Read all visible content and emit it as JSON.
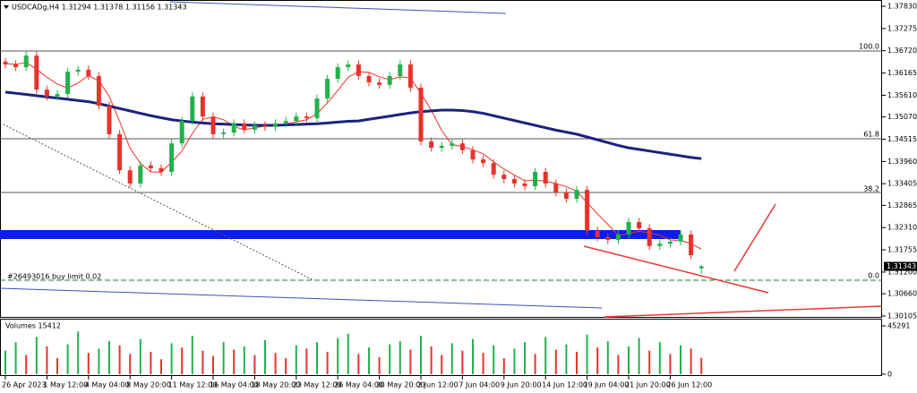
{
  "chart_data": {
    "type": "candlestick",
    "header": "USDCADg,H4  1.31294 1.31378 1.31156 1.31343",
    "categories": [
      "26 Apr 2023",
      null,
      null,
      null,
      "1 May 12:00",
      null,
      null,
      null,
      "4 May 04:00",
      null,
      null,
      null,
      "8 May 20:00",
      null,
      null,
      null,
      "11 May 12:00",
      null,
      null,
      null,
      "16 May 04:00",
      null,
      null,
      null,
      "18 May 20:00",
      null,
      null,
      null,
      "23 May 12:00",
      null,
      null,
      null,
      "26 May 04:00",
      null,
      null,
      null,
      "30 May 20:00",
      null,
      null,
      null,
      "2 Jun 12:00",
      null,
      null,
      null,
      "7 Jun 04:00",
      null,
      null,
      null,
      "9 Jun 20:00",
      null,
      null,
      null,
      "14 Jun 12:00",
      null,
      null,
      null,
      "19 Jun 04:00",
      null,
      null,
      null,
      "21 Jun 20:00",
      null,
      null,
      null,
      "26 Jun 12:00",
      null,
      null,
      null
    ],
    "open": [
      1.3645,
      1.3638,
      1.3631,
      1.366,
      1.3575,
      1.3558,
      1.3564,
      1.362,
      1.3625,
      1.3609,
      1.3535,
      1.3464,
      1.3374,
      1.3341,
      1.3386,
      1.3379,
      1.337,
      1.3441,
      1.3497,
      1.3558,
      1.3508,
      1.3464,
      1.3468,
      1.3491,
      1.3475,
      1.3486,
      1.3482,
      1.3491,
      1.3497,
      1.3508,
      1.3504,
      1.3553,
      1.3602,
      1.3631,
      1.3638,
      1.3609,
      1.3593,
      1.3587,
      1.3609,
      1.3638,
      1.358,
      1.3446,
      1.343,
      1.3435,
      1.3441,
      1.3424,
      1.3401,
      1.3392,
      1.3363,
      1.3352,
      1.3341,
      1.3334,
      1.337,
      1.3341,
      1.3319,
      1.3303,
      1.3325,
      1.3223,
      1.3207,
      1.32,
      1.3214,
      1.3245,
      1.3229,
      1.3185,
      1.3191,
      1.3196,
      1.3214,
      1.31294
    ],
    "high": [
      1.3655,
      1.3648,
      1.367,
      1.367,
      1.3585,
      1.3574,
      1.363,
      1.3635,
      1.3635,
      1.3619,
      1.3545,
      1.3474,
      1.3384,
      1.3396,
      1.3396,
      1.3389,
      1.3451,
      1.3507,
      1.3568,
      1.3568,
      1.3518,
      1.3478,
      1.3501,
      1.3501,
      1.3496,
      1.3496,
      1.3501,
      1.3507,
      1.3518,
      1.3518,
      1.3563,
      1.3612,
      1.3641,
      1.3648,
      1.3648,
      1.3619,
      1.3603,
      1.3619,
      1.3648,
      1.3648,
      1.359,
      1.3456,
      1.3445,
      1.3451,
      1.3451,
      1.3434,
      1.3411,
      1.3402,
      1.3373,
      1.3362,
      1.3351,
      1.338,
      1.338,
      1.3351,
      1.3329,
      1.3335,
      1.3335,
      1.3233,
      1.3217,
      1.3224,
      1.3255,
      1.3255,
      1.3239,
      1.3201,
      1.3206,
      1.3224,
      1.3224,
      1.31378
    ],
    "low": [
      1.3628,
      1.3621,
      1.3621,
      1.3565,
      1.3548,
      1.3548,
      1.3554,
      1.361,
      1.3599,
      1.3525,
      1.3454,
      1.3364,
      1.3331,
      1.3331,
      1.3369,
      1.336,
      1.336,
      1.3431,
      1.3487,
      1.3498,
      1.3454,
      1.3454,
      1.3458,
      1.3465,
      1.3465,
      1.3472,
      1.3472,
      1.3481,
      1.3487,
      1.3494,
      1.3494,
      1.3543,
      1.3592,
      1.3621,
      1.3599,
      1.3583,
      1.3577,
      1.3577,
      1.3599,
      1.357,
      1.3436,
      1.342,
      1.342,
      1.3425,
      1.3414,
      1.3391,
      1.3382,
      1.3353,
      1.3342,
      1.3331,
      1.3324,
      1.3324,
      1.3331,
      1.3309,
      1.3293,
      1.3293,
      1.3213,
      1.3197,
      1.319,
      1.319,
      1.3204,
      1.3219,
      1.3175,
      1.3175,
      1.3181,
      1.3186,
      1.3152,
      1.31156
    ],
    "close": [
      1.3638,
      1.3631,
      1.366,
      1.3575,
      1.3558,
      1.3564,
      1.362,
      1.3625,
      1.3609,
      1.3535,
      1.3464,
      1.3374,
      1.3341,
      1.3386,
      1.3379,
      1.337,
      1.3441,
      1.3497,
      1.3558,
      1.3508,
      1.3464,
      1.3468,
      1.3491,
      1.3475,
      1.3486,
      1.3482,
      1.3491,
      1.3497,
      1.3508,
      1.3504,
      1.3553,
      1.3602,
      1.3631,
      1.3638,
      1.3609,
      1.3593,
      1.3587,
      1.3609,
      1.3638,
      1.358,
      1.3446,
      1.343,
      1.3435,
      1.3441,
      1.3424,
      1.3401,
      1.3392,
      1.3363,
      1.3352,
      1.3341,
      1.3334,
      1.337,
      1.3341,
      1.3319,
      1.3303,
      1.3325,
      1.3223,
      1.3207,
      1.32,
      1.3214,
      1.3245,
      1.3229,
      1.3185,
      1.3191,
      1.3196,
      1.3214,
      1.3162,
      1.31343
    ],
    "up_color": "#22b14c",
    "down_color": "#e8332a",
    "ylim": [
      1.3006,
      1.37986
    ],
    "yticks": [
      {
        "value": 1.3783,
        "label": "1.37830"
      },
      {
        "value": 1.37275,
        "label": "1.37275"
      },
      {
        "value": 1.3672,
        "label": "1.36720"
      },
      {
        "value": 1.36165,
        "label": "1.36165"
      },
      {
        "value": 1.3561,
        "label": "1.35610"
      },
      {
        "value": 1.3507,
        "label": "1.35070"
      },
      {
        "value": 1.34515,
        "label": "1.34515"
      },
      {
        "value": 1.3396,
        "label": "1.33960"
      },
      {
        "value": 1.33405,
        "label": "1.33405"
      },
      {
        "value": 1.32865,
        "label": "1.32865"
      },
      {
        "value": 1.3231,
        "label": "1.32310"
      },
      {
        "value": 1.31755,
        "label": "1.31755"
      },
      {
        "value": 1.312,
        "label": "1.31200"
      },
      {
        "value": 1.3066,
        "label": "1.30660"
      },
      {
        "value": 1.30105,
        "label": "1.30105"
      }
    ],
    "last_price": 1.31343,
    "moving_averages": [
      {
        "color": "#e8332a",
        "values": [
          1.364,
          1.3638,
          1.3643,
          1.3626,
          1.3606,
          1.3589,
          1.3579,
          1.3592,
          1.361,
          1.3597,
          1.3558,
          1.3496,
          1.3429,
          1.3391,
          1.337,
          1.3369,
          1.3394,
          1.3422,
          1.3466,
          1.3501,
          1.3507,
          1.35,
          1.3483,
          1.3475,
          1.348,
          1.3484,
          1.3484,
          1.3489,
          1.3495,
          1.35,
          1.3515,
          1.3542,
          1.3573,
          1.3606,
          1.362,
          1.3618,
          1.3607,
          1.36,
          1.3607,
          1.3604,
          1.3566,
          1.3524,
          1.3473,
          1.3438,
          1.3433,
          1.3425,
          1.3415,
          1.3395,
          1.3377,
          1.3362,
          1.3348,
          1.3349,
          1.3347,
          1.3341,
          1.3333,
          1.3322,
          1.3293,
          1.3265,
          1.3239,
          1.3211,
          1.3216,
          1.3222,
          1.3218,
          1.3212,
          1.32,
          1.3199,
          1.3191,
          1.3177
        ]
      },
      {
        "color": "#1a237e",
        "values": [
          1.3569,
          1.3566,
          1.3563,
          1.356,
          1.3557,
          1.3554,
          1.3551,
          1.3548,
          1.3545,
          1.354,
          1.3534,
          1.3528,
          1.3522,
          1.3516,
          1.351,
          1.3505,
          1.35,
          1.3497,
          1.3494,
          1.3492,
          1.349,
          1.3489,
          1.3488,
          1.3487,
          1.3486,
          1.3486,
          1.3486,
          1.3487,
          1.3488,
          1.3489,
          1.349,
          1.3492,
          1.3494,
          1.3496,
          1.3497,
          1.3501,
          1.3505,
          1.3509,
          1.3513,
          1.3517,
          1.352,
          1.3522,
          1.3524,
          1.3524,
          1.3523,
          1.352,
          1.3516,
          1.351,
          1.3504,
          1.3498,
          1.3492,
          1.3486,
          1.348,
          1.3474,
          1.3469,
          1.3464,
          1.3457,
          1.345,
          1.3443,
          1.3436,
          1.343,
          1.3426,
          1.3422,
          1.3418,
          1.3414,
          1.341,
          1.3406,
          1.3403
        ]
      }
    ],
    "fib_labels": [
      "100.0",
      "61.8",
      "38.2",
      "0.0"
    ],
    "order_label": "#26493016 buy limit 0.02",
    "volume": {
      "label": "Volumes 15412",
      "ylim": [
        0,
        45291
      ],
      "yticks": [
        45291,
        0
      ],
      "values": [
        22000,
        30000,
        18000,
        35000,
        26000,
        15000,
        28000,
        40000,
        20000,
        24000,
        31000,
        27000,
        19000,
        33000,
        21000,
        14000,
        29000,
        25000,
        36000,
        22000,
        17000,
        30000,
        23000,
        26000,
        18000,
        32000,
        20000,
        15000,
        27000,
        24000,
        30000,
        21000,
        34000,
        38000,
        19000,
        25000,
        16000,
        28000,
        31000,
        23000,
        36000,
        26000,
        18000,
        29000,
        22000,
        33000,
        20000,
        27000,
        15000,
        24000,
        30000,
        19000,
        35000,
        23000,
        28000,
        21000,
        37000,
        25000,
        31000,
        18000,
        26000,
        34000,
        22000,
        30000,
        19000,
        27000,
        24000,
        15412
      ]
    }
  }
}
